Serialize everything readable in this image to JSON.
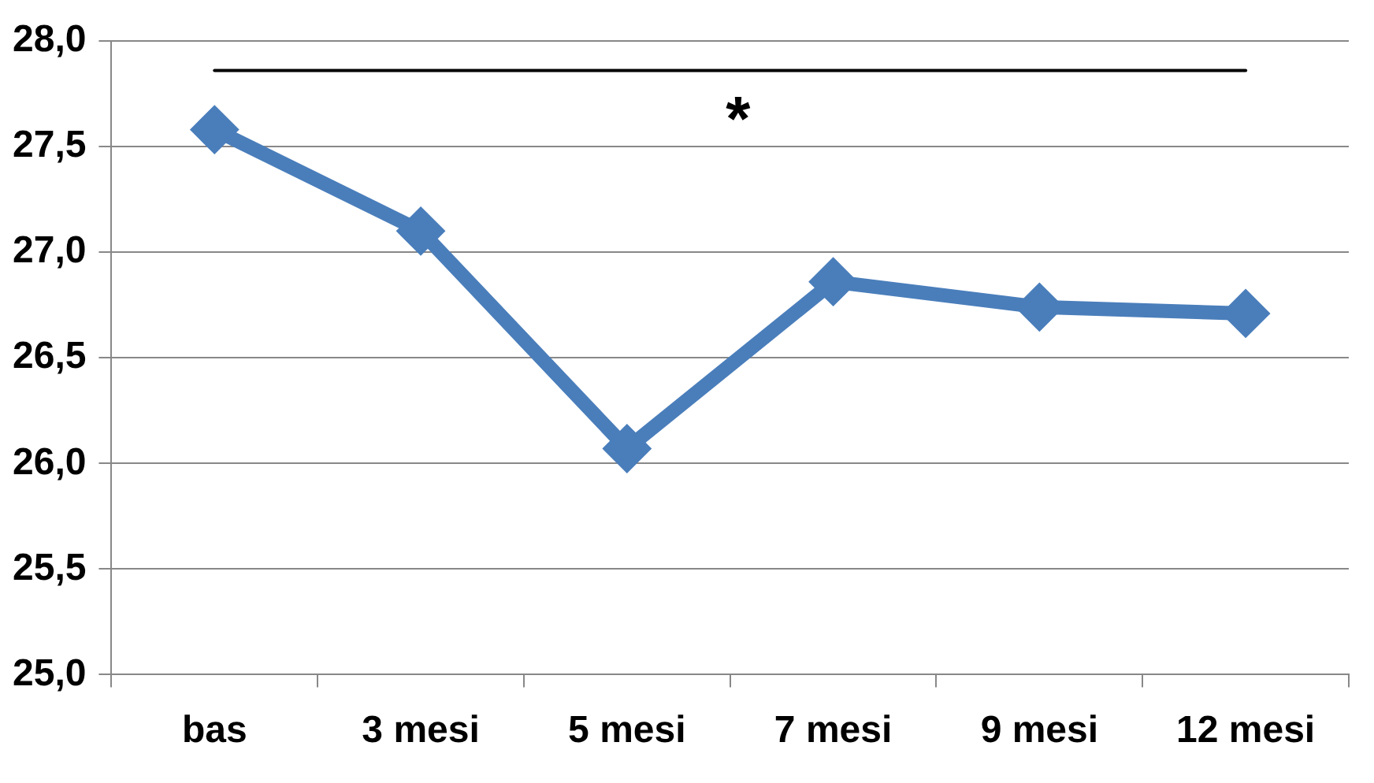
{
  "chart_data": {
    "type": "line",
    "categories": [
      "bas",
      "3 mesi",
      "5 mesi",
      "7 mesi",
      "9 mesi",
      "12 mesi"
    ],
    "series": [
      {
        "color": "#4a7ebb",
        "values": [
          27.58,
          27.1,
          26.07,
          26.86,
          26.74,
          26.71
        ]
      },
      {
        "type": "line",
        "color": "#000000",
        "marker": "none",
        "values": [
          27.86,
          27.86,
          27.86,
          27.86,
          27.86,
          27.86
        ]
      }
    ],
    "ylim": [
      25,
      28
    ],
    "yticks": [
      {
        "value": 25,
        "label": "25,0"
      },
      {
        "value": 25.5,
        "label": "25,5"
      },
      {
        "value": 26,
        "label": "26,0"
      },
      {
        "value": 26.5,
        "label": "26,5"
      },
      {
        "value": 27,
        "label": "27,0"
      },
      {
        "value": 27.5,
        "label": "27,5"
      },
      {
        "value": 28,
        "label": "28,0"
      }
    ],
    "grid": "y",
    "legend": false,
    "marker": "diamond",
    "line_style": "solid",
    "annotations": [
      "*"
    ]
  }
}
